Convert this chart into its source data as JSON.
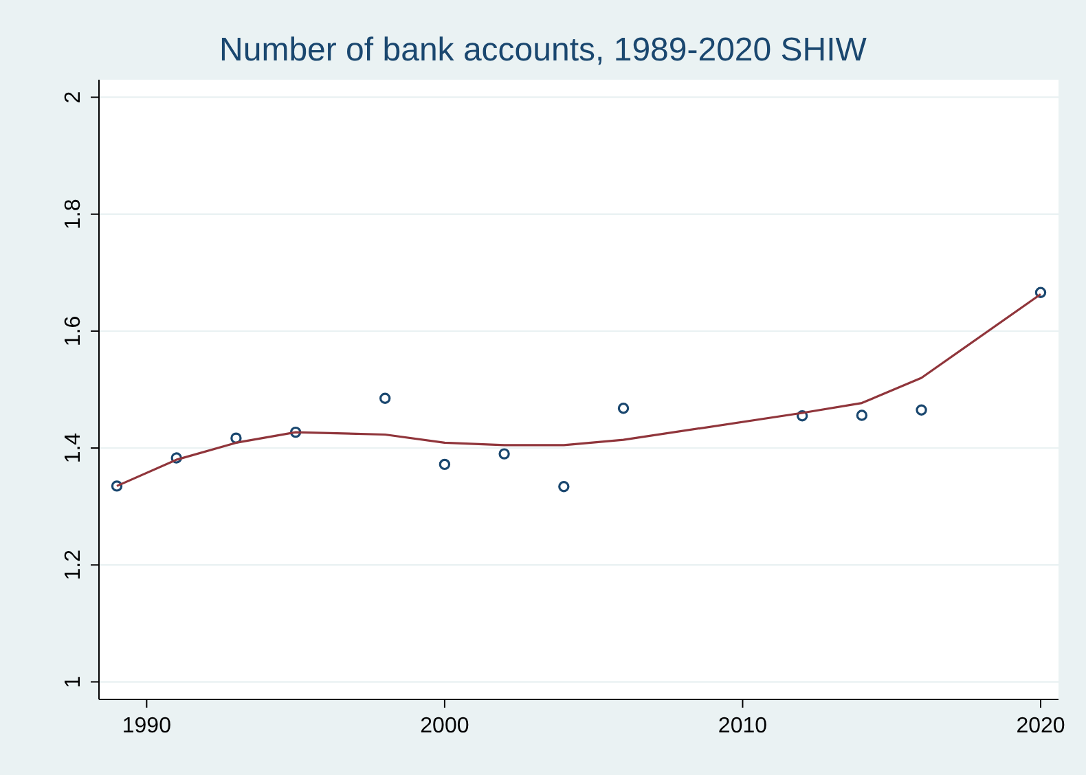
{
  "chart_data": {
    "type": "scatter",
    "title": "Number of bank accounts, 1989-2020 SHIW",
    "grid": "y",
    "xlim": [
      1988.4,
      2020.6
    ],
    "xticks": [
      1990,
      2000,
      2010,
      2020
    ],
    "ylim": [
      0.97,
      2.03
    ],
    "yticks": [
      1,
      1.2,
      1.4,
      1.6,
      1.8,
      2
    ],
    "series": [
      {
        "color": "#1a476f",
        "marker": "circle",
        "x": [
          1989,
          1991,
          1993,
          1995,
          1998,
          2000,
          2002,
          2004,
          2006,
          2012,
          2014,
          2016,
          2020
        ],
        "values": [
          1.335,
          1.383,
          1.417,
          1.427,
          1.485,
          1.372,
          1.39,
          1.334,
          1.468,
          1.455,
          1.456,
          1.465,
          1.666
        ]
      },
      {
        "type": "line",
        "color": "#90353b",
        "marker": "none",
        "line_style": "solid",
        "x": [
          1989,
          1991,
          1993,
          1995,
          1998,
          2000,
          2002,
          2004,
          2006,
          2012,
          2014,
          2016,
          2020
        ],
        "values": [
          1.335,
          1.38,
          1.409,
          1.427,
          1.423,
          1.409,
          1.405,
          1.405,
          1.414,
          1.46,
          1.477,
          1.52,
          1.663
        ]
      }
    ]
  }
}
